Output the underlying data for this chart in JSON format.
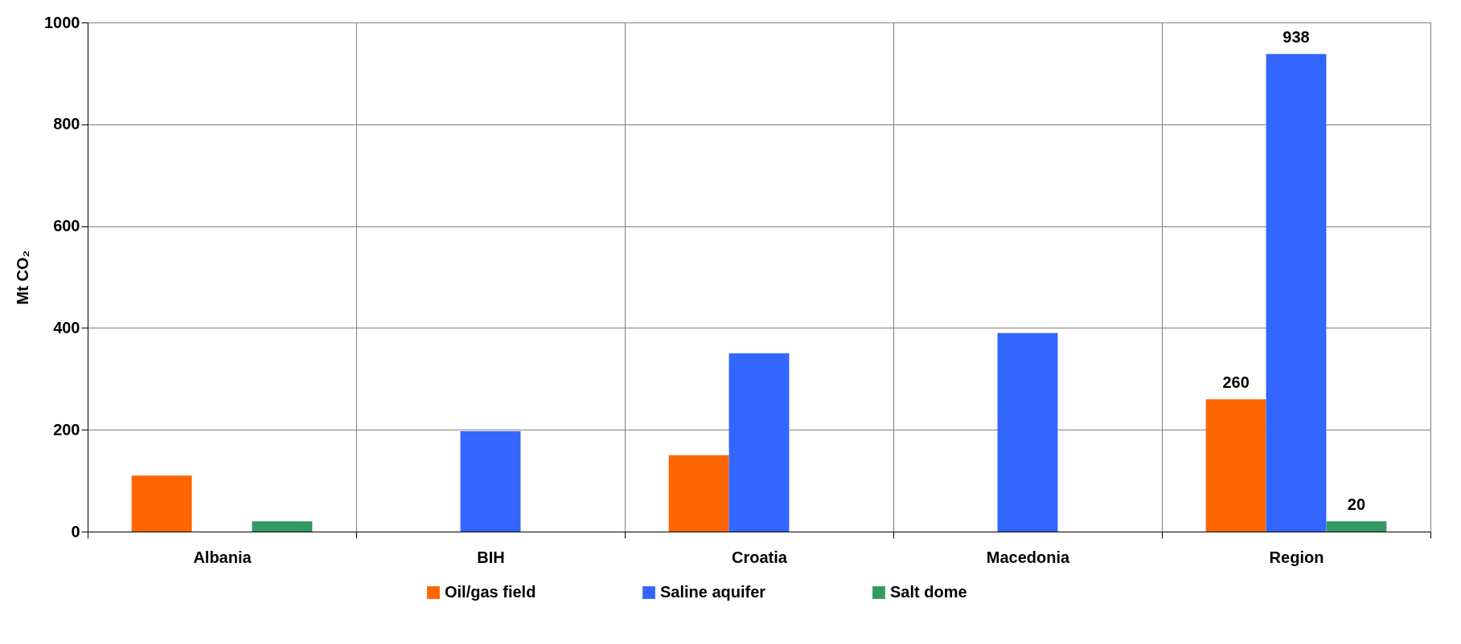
{
  "chart_data": {
    "type": "bar",
    "ylabel": "Mt CO₂",
    "categories": [
      "Albania",
      "BIH",
      "Croatia",
      "Macedonia",
      "Region"
    ],
    "series": [
      {
        "name": "Oil/gas field",
        "color": "#ff6600",
        "values": [
          110,
          null,
          150,
          null,
          260
        ],
        "value_labels": [
          null,
          null,
          null,
          null,
          "260"
        ]
      },
      {
        "name": "Saline aquifer",
        "color": "#3366ff",
        "values": [
          null,
          197,
          350,
          390,
          938
        ],
        "value_labels": [
          null,
          null,
          null,
          null,
          "938"
        ]
      },
      {
        "name": "Salt dome",
        "color": "#339966",
        "values": [
          20,
          null,
          null,
          null,
          20
        ],
        "value_labels": [
          null,
          null,
          null,
          null,
          "20"
        ]
      }
    ],
    "ylim": [
      0,
      1000
    ],
    "yticks": [
      0,
      200,
      400,
      600,
      800,
      1000
    ],
    "grid": true,
    "legend": "bottom"
  }
}
